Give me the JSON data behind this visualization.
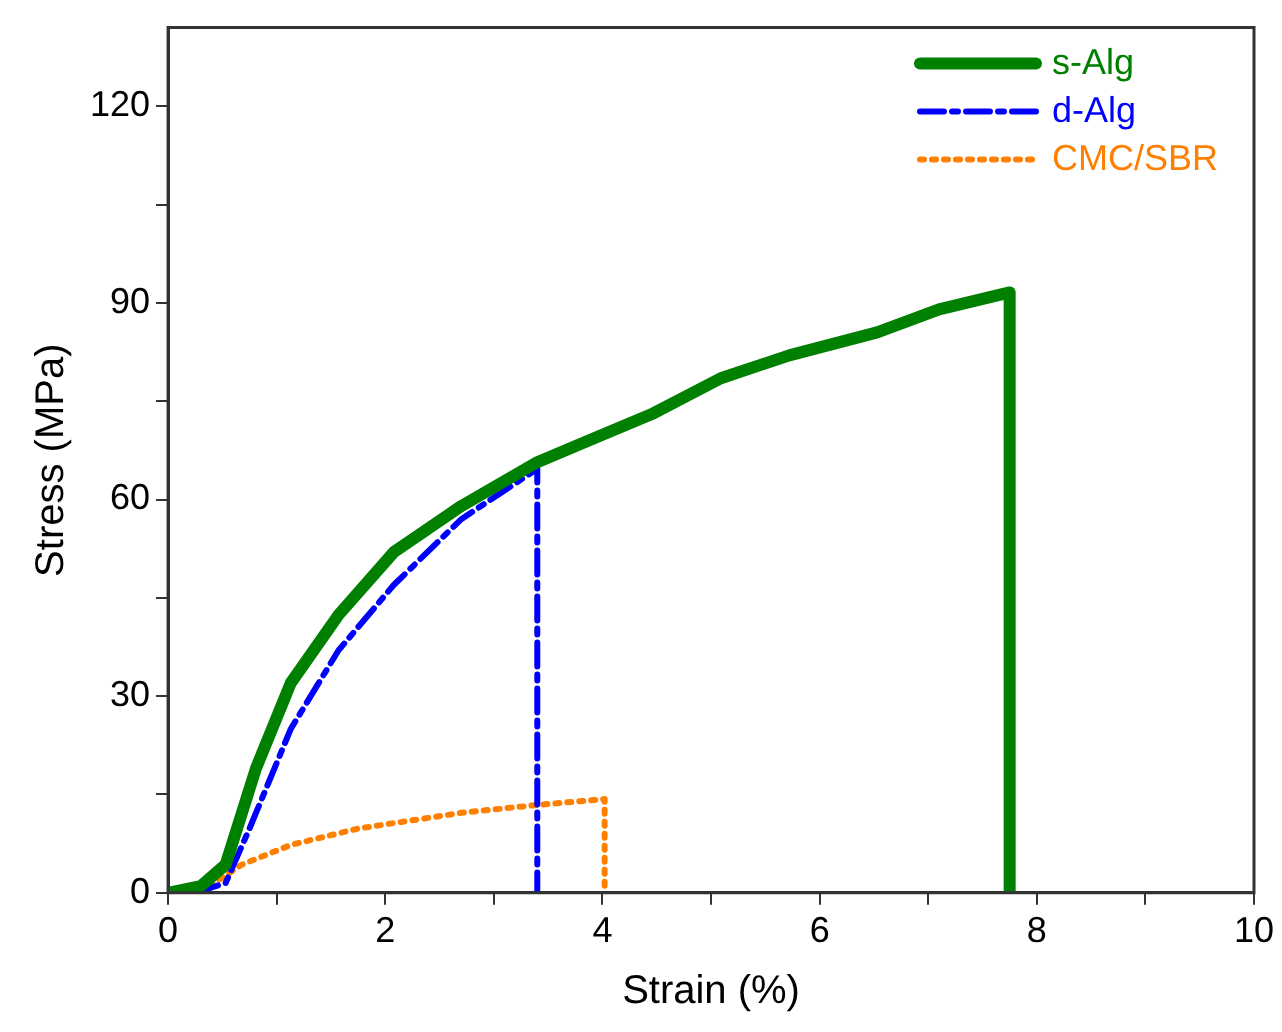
{
  "chart_data": {
    "type": "line",
    "xlabel": "Strain (%)",
    "ylabel": "Stress (MPa)",
    "xlim": [
      0,
      10
    ],
    "ylim": [
      0,
      132
    ],
    "xticks": [
      0,
      {
        "value": 1,
        "label": null
      },
      2,
      {
        "value": 3,
        "label": null
      },
      4,
      {
        "value": 5,
        "label": null
      },
      6,
      {
        "value": 7,
        "label": null
      },
      8,
      {
        "value": 9,
        "label": null
      },
      10
    ],
    "yticks": [
      0,
      {
        "value": 15,
        "label": null
      },
      30,
      {
        "value": 45,
        "label": null
      },
      60,
      {
        "value": 75,
        "label": null
      },
      90,
      {
        "value": 105,
        "label": null
      },
      120
    ],
    "grid": false,
    "legend": "top right",
    "marker": "none",
    "series": [
      {
        "name": "s-Alg",
        "color": "#008000",
        "line_style": "solid",
        "x": [
          0,
          0.3,
          0.53,
          0.81,
          1.13,
          1.57,
          2.08,
          2.7,
          3.4,
          3.83,
          4.45,
          5.09,
          5.72,
          6.53,
          7.1,
          7.75,
          7.75
        ],
        "values": [
          0,
          1,
          4.3,
          19,
          32,
          42.4,
          52,
          59,
          65.7,
          68.7,
          73,
          78.5,
          82,
          85.5,
          89,
          91.6,
          0
        ]
      },
      {
        "name": "d-Alg",
        "color": "#0000ff",
        "line_style": "dashdot",
        "x": [
          0.25,
          0.53,
          0.75,
          1.13,
          1.57,
          2.08,
          2.7,
          3.4,
          3.4
        ],
        "values": [
          0,
          1.5,
          9.8,
          25,
          37,
          47,
          57,
          64.7,
          0
        ]
      },
      {
        "name": "CMC/SBR",
        "color": "#ff8000",
        "line_style": "dotted",
        "x": [
          0.38,
          0.68,
          1.13,
          1.75,
          2.7,
          3.4,
          4.02,
          4.02
        ],
        "values": [
          1,
          4.3,
          7.3,
          9.8,
          12.2,
          13.4,
          14.3,
          0
        ]
      }
    ]
  }
}
